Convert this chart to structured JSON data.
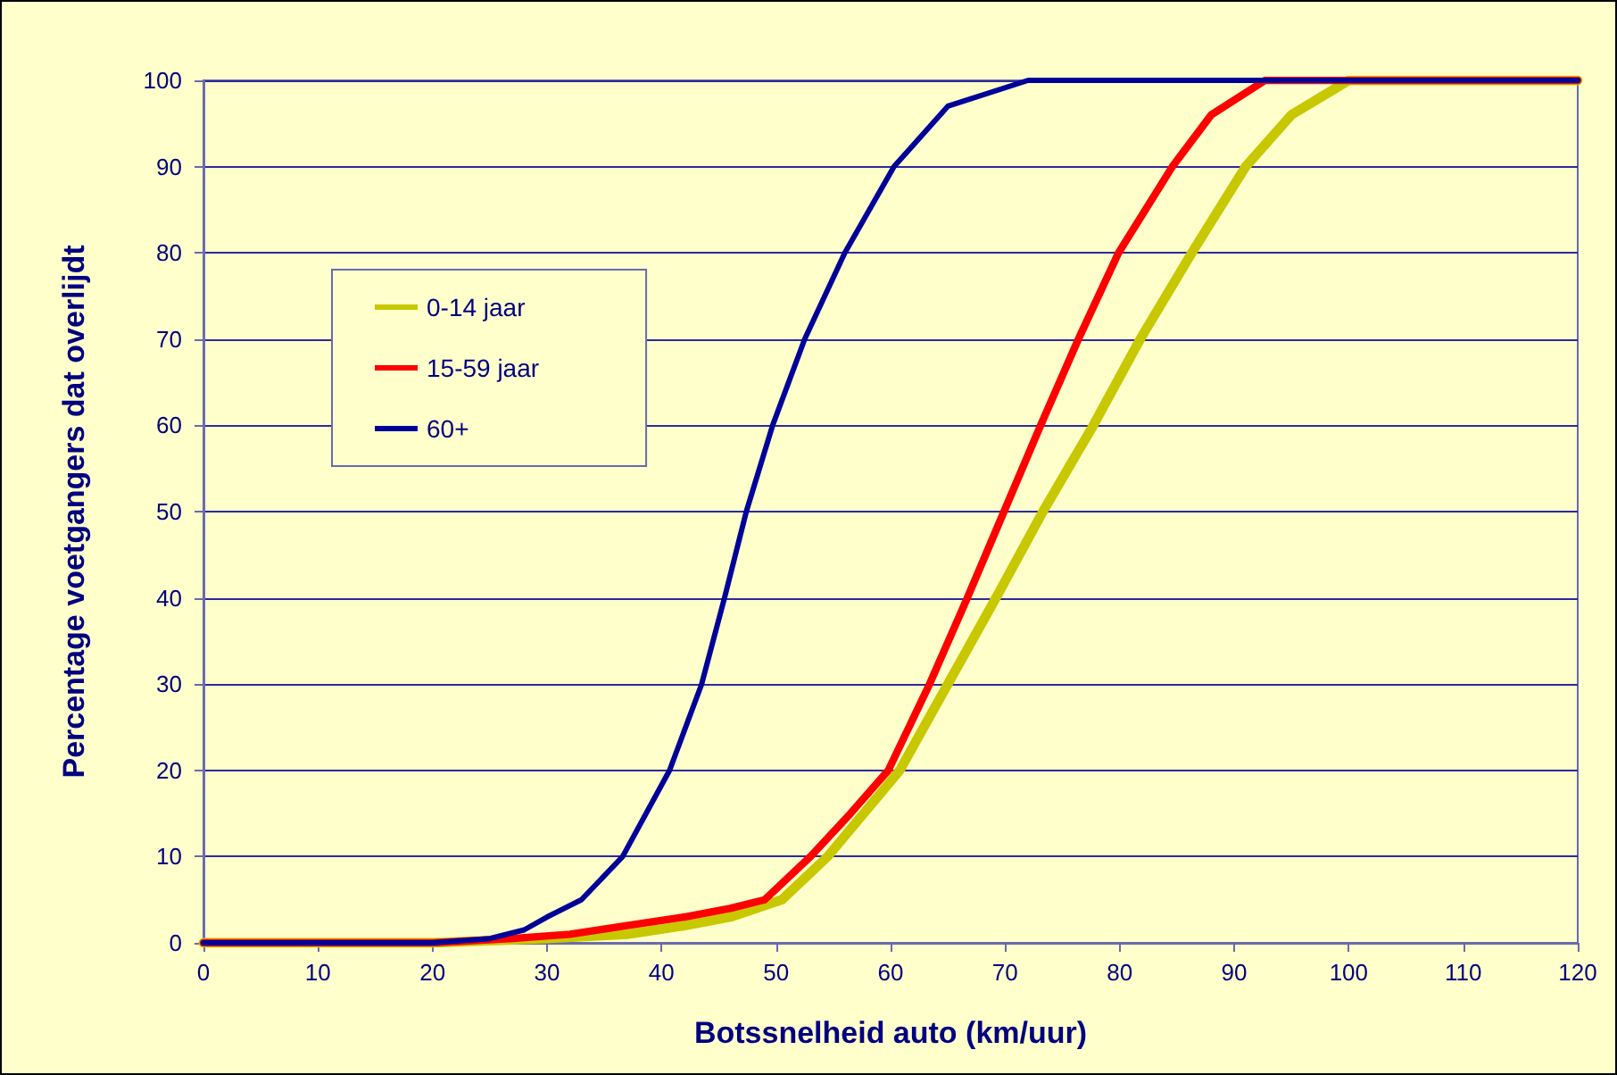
{
  "chart_data": {
    "type": "line",
    "xlabel": "Botssnelheid auto (km/uur)",
    "ylabel": "Percentage voetgangers dat overlijdt",
    "xlim": [
      0,
      120
    ],
    "xticks": [
      0,
      10,
      20,
      30,
      40,
      50,
      60,
      70,
      80,
      90,
      100,
      110,
      120
    ],
    "ylim": [
      0,
      100
    ],
    "yticks": [
      0,
      10,
      20,
      30,
      40,
      50,
      60,
      70,
      80,
      90,
      100
    ],
    "grid": "y",
    "legend": "top left",
    "marker": "none",
    "line_style": "solid",
    "series": [
      {
        "name": "0-14 jaar",
        "color": "#c8c800",
        "x": [
          0,
          20,
          30,
          37,
          42,
          46,
          50.5,
          54.5,
          60.8,
          65,
          69.2,
          73.3,
          77.7,
          81.8,
          86.3,
          91,
          95,
          100,
          120
        ],
        "values": [
          0,
          0,
          0.5,
          1,
          2,
          3,
          5,
          10,
          20,
          30,
          40,
          50,
          60,
          70,
          80,
          90,
          96,
          100,
          100
        ]
      },
      {
        "name": "15-59 jaar",
        "color": "#ff0000",
        "x": [
          0,
          20,
          27,
          32,
          37,
          42,
          46,
          49,
          53,
          56.5,
          59.8,
          63.4,
          66.7,
          69.9,
          73.1,
          76.4,
          79.9,
          84.6,
          88,
          92.7,
          120
        ],
        "values": [
          0,
          0,
          0.5,
          1,
          2,
          3,
          4,
          5,
          10,
          15,
          20,
          30,
          40,
          50,
          60,
          70,
          80,
          90,
          96,
          100,
          100
        ]
      },
      {
        "name": "60+",
        "color": "#000099",
        "x": [
          0,
          20,
          25,
          28,
          30,
          33,
          36.6,
          40.7,
          43.5,
          45.5,
          47.4,
          49.7,
          52.5,
          56,
          60.3,
          65,
          72,
          120
        ],
        "values": [
          0,
          0,
          0.5,
          1.5,
          3,
          5,
          10,
          20,
          30,
          40,
          50,
          60,
          70,
          80,
          90,
          97,
          100,
          100
        ]
      }
    ]
  }
}
